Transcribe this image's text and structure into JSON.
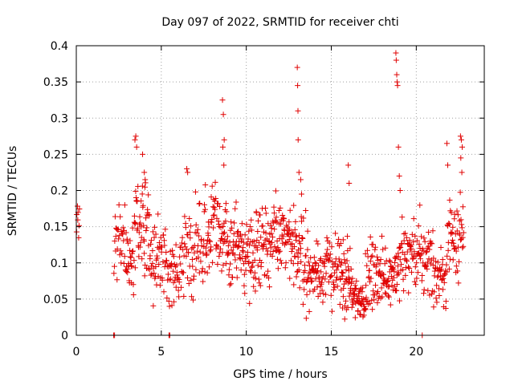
{
  "chart_data": {
    "type": "scatter",
    "title": "Day 097 of 2022, SRMTID for receiver chti",
    "xlabel": "GPS time / hours",
    "ylabel": "SRMTID / TECUs",
    "xlim": [
      0,
      24
    ],
    "ylim": [
      0,
      0.4
    ],
    "xticks": [
      0,
      5,
      10,
      15,
      20
    ],
    "yticks": [
      0,
      0.05,
      0.1,
      0.15,
      0.2,
      0.25,
      0.3,
      0.35,
      0.4
    ],
    "ytick_labels": [
      "0",
      "0.05",
      "0.1",
      "0.15",
      "0.2",
      "0.25",
      "0.3",
      "0.35",
      "0.4"
    ],
    "xtick_labels": [
      "0",
      "5",
      "10",
      "15",
      "20"
    ],
    "grid": true,
    "marker": "+",
    "color": "#e00000",
    "segments": [
      {
        "x_start": 0.0,
        "x_end": 0.2,
        "baseline": 0.155,
        "spread": 0.02,
        "density": 8
      },
      {
        "x_start": 2.2,
        "x_end": 2.9,
        "baseline": 0.125,
        "spread": 0.03,
        "density": 30
      },
      {
        "x_start": 2.9,
        "x_end": 3.4,
        "baseline": 0.1,
        "spread": 0.03,
        "density": 28
      },
      {
        "x_start": 3.4,
        "x_end": 4.3,
        "baseline": 0.155,
        "spread": 0.045,
        "density": 50
      },
      {
        "x_start": 4.3,
        "x_end": 5.2,
        "baseline": 0.11,
        "spread": 0.035,
        "density": 45
      },
      {
        "x_start": 5.2,
        "x_end": 6.2,
        "baseline": 0.085,
        "spread": 0.03,
        "density": 48
      },
      {
        "x_start": 6.2,
        "x_end": 7.5,
        "baseline": 0.12,
        "spread": 0.04,
        "density": 60
      },
      {
        "x_start": 7.5,
        "x_end": 8.5,
        "baseline": 0.14,
        "spread": 0.04,
        "density": 55
      },
      {
        "x_start": 8.5,
        "x_end": 9.5,
        "baseline": 0.13,
        "spread": 0.04,
        "density": 55
      },
      {
        "x_start": 9.5,
        "x_end": 10.5,
        "baseline": 0.115,
        "spread": 0.035,
        "density": 55
      },
      {
        "x_start": 10.5,
        "x_end": 11.5,
        "baseline": 0.13,
        "spread": 0.035,
        "density": 55
      },
      {
        "x_start": 11.5,
        "x_end": 12.5,
        "baseline": 0.13,
        "spread": 0.035,
        "density": 55
      },
      {
        "x_start": 12.5,
        "x_end": 13.5,
        "baseline": 0.12,
        "spread": 0.04,
        "density": 55
      },
      {
        "x_start": 13.5,
        "x_end": 14.5,
        "baseline": 0.085,
        "spread": 0.03,
        "density": 55
      },
      {
        "x_start": 14.5,
        "x_end": 15.5,
        "baseline": 0.09,
        "spread": 0.03,
        "density": 50
      },
      {
        "x_start": 15.5,
        "x_end": 16.2,
        "baseline": 0.08,
        "spread": 0.035,
        "density": 45
      },
      {
        "x_start": 16.2,
        "x_end": 17.0,
        "baseline": 0.05,
        "spread": 0.02,
        "density": 50
      },
      {
        "x_start": 17.0,
        "x_end": 18.0,
        "baseline": 0.08,
        "spread": 0.03,
        "density": 55
      },
      {
        "x_start": 18.0,
        "x_end": 19.0,
        "baseline": 0.085,
        "spread": 0.025,
        "density": 55
      },
      {
        "x_start": 19.0,
        "x_end": 20.0,
        "baseline": 0.11,
        "spread": 0.035,
        "density": 50
      },
      {
        "x_start": 20.0,
        "x_end": 21.0,
        "baseline": 0.105,
        "spread": 0.035,
        "density": 50
      },
      {
        "x_start": 21.0,
        "x_end": 21.8,
        "baseline": 0.08,
        "spread": 0.025,
        "density": 40
      },
      {
        "x_start": 21.8,
        "x_end": 22.8,
        "baseline": 0.14,
        "spread": 0.04,
        "density": 50
      }
    ],
    "outliers": [
      {
        "x": 3.45,
        "y": 0.27
      },
      {
        "x": 3.5,
        "y": 0.275
      },
      {
        "x": 3.55,
        "y": 0.26
      },
      {
        "x": 3.9,
        "y": 0.25
      },
      {
        "x": 4.0,
        "y": 0.225
      },
      {
        "x": 4.05,
        "y": 0.215
      },
      {
        "x": 6.5,
        "y": 0.23
      },
      {
        "x": 6.55,
        "y": 0.225
      },
      {
        "x": 8.6,
        "y": 0.325
      },
      {
        "x": 8.65,
        "y": 0.305
      },
      {
        "x": 8.7,
        "y": 0.27
      },
      {
        "x": 8.62,
        "y": 0.26
      },
      {
        "x": 8.68,
        "y": 0.235
      },
      {
        "x": 13.0,
        "y": 0.37
      },
      {
        "x": 13.02,
        "y": 0.345
      },
      {
        "x": 13.04,
        "y": 0.31
      },
      {
        "x": 13.05,
        "y": 0.27
      },
      {
        "x": 13.1,
        "y": 0.225
      },
      {
        "x": 13.2,
        "y": 0.215
      },
      {
        "x": 13.25,
        "y": 0.195
      },
      {
        "x": 16.0,
        "y": 0.235
      },
      {
        "x": 16.05,
        "y": 0.21
      },
      {
        "x": 18.8,
        "y": 0.39
      },
      {
        "x": 18.82,
        "y": 0.38
      },
      {
        "x": 18.85,
        "y": 0.36
      },
      {
        "x": 18.87,
        "y": 0.35
      },
      {
        "x": 18.9,
        "y": 0.345
      },
      {
        "x": 18.95,
        "y": 0.26
      },
      {
        "x": 19.0,
        "y": 0.22
      },
      {
        "x": 19.05,
        "y": 0.2
      },
      {
        "x": 21.8,
        "y": 0.265
      },
      {
        "x": 21.85,
        "y": 0.235
      },
      {
        "x": 22.6,
        "y": 0.275
      },
      {
        "x": 22.65,
        "y": 0.27
      },
      {
        "x": 22.7,
        "y": 0.26
      },
      {
        "x": 22.62,
        "y": 0.245
      },
      {
        "x": 22.68,
        "y": 0.225
      },
      {
        "x": 2.2,
        "y": 0.0
      },
      {
        "x": 2.25,
        "y": 0.0
      },
      {
        "x": 5.45,
        "y": 0.0
      },
      {
        "x": 5.5,
        "y": 0.0
      },
      {
        "x": 20.35,
        "y": 0.0
      }
    ]
  }
}
